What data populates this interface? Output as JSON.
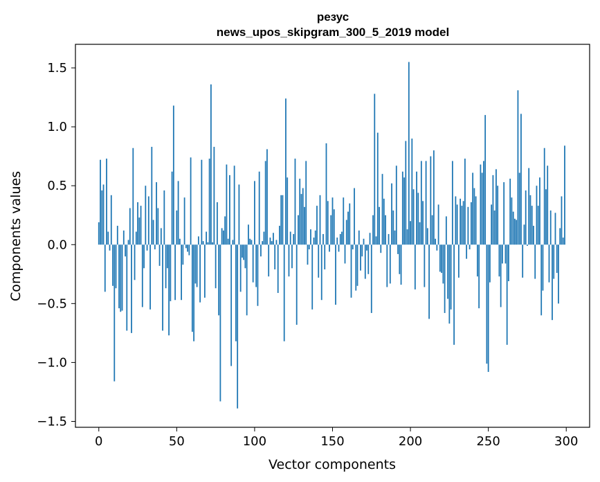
{
  "chart_data": {
    "type": "bar",
    "title": "резус",
    "subtitle": "news_upos_skipgram_300_5_2019 model",
    "xlabel": "Vector components",
    "ylabel": "Components values",
    "xlim": [
      -15,
      315
    ],
    "ylim": [
      -1.55,
      1.7
    ],
    "xticks": [
      0,
      50,
      100,
      150,
      200,
      250,
      300
    ],
    "xtick_labels": [
      "0",
      "50",
      "100",
      "150",
      "200",
      "250",
      "300"
    ],
    "yticks": [
      -1.5,
      -1.0,
      -0.5,
      0.0,
      0.5,
      1.0,
      1.5
    ],
    "ytick_labels": [
      "−1.5",
      "−1.0",
      "−0.5",
      "0.0",
      "0.5",
      "1.0",
      "1.5"
    ],
    "bar_color": "#1f77b4",
    "x": "0..299",
    "values": [
      0.19,
      0.72,
      0.46,
      0.51,
      -0.4,
      0.73,
      0.11,
      -0.05,
      0.42,
      -0.35,
      -1.16,
      -0.37,
      0.16,
      -0.54,
      -0.57,
      -0.56,
      0.12,
      -0.1,
      -0.73,
      0.04,
      0.31,
      -0.75,
      0.82,
      -0.3,
      0.11,
      0.36,
      0.23,
      0.33,
      -0.53,
      -0.2,
      0.5,
      -0.05,
      0.41,
      -0.55,
      0.83,
      0.21,
      -0.04,
      0.53,
      0.31,
      -0.18,
      0.14,
      -0.73,
      0.46,
      -0.37,
      -0.2,
      -0.77,
      -0.48,
      0.62,
      1.18,
      -0.47,
      0.29,
      0.54,
      0.05,
      -0.47,
      -0.17,
      0.4,
      -0.03,
      -0.06,
      -0.09,
      0.74,
      -0.74,
      -0.82,
      -0.33,
      -0.36,
      0.07,
      -0.49,
      0.72,
      0.03,
      -0.45,
      0.11,
      0.02,
      0.73,
      1.36,
      0.02,
      0.83,
      -0.37,
      0.36,
      -0.6,
      -1.33,
      0.14,
      0.12,
      0.24,
      0.68,
      0.05,
      0.59,
      -1.03,
      0.04,
      0.67,
      -0.82,
      -1.39,
      0.51,
      -0.4,
      -0.11,
      -0.13,
      -0.2,
      -0.6,
      0.17,
      0.05,
      0.04,
      -0.32,
      0.54,
      -0.36,
      -0.52,
      0.62,
      -0.1,
      0.03,
      0.11,
      0.71,
      0.81,
      -0.27,
      0.06,
      0.03,
      0.1,
      -0.21,
      0.04,
      -0.41,
      0.16,
      0.42,
      0.42,
      -0.82,
      1.24,
      0.57,
      -0.27,
      0.11,
      -0.2,
      0.09,
      0.73,
      -0.68,
      0.25,
      0.56,
      0.43,
      0.48,
      0.32,
      0.71,
      -0.17,
      -0.04,
      0.13,
      -0.55,
      0.06,
      0.12,
      0.33,
      -0.28,
      0.42,
      -0.47,
      0.09,
      -0.21,
      0.86,
      0.37,
      -0.06,
      0.25,
      0.4,
      0.3,
      -0.51,
      0.06,
      -0.06,
      0.09,
      0.11,
      0.4,
      -0.16,
      0.21,
      0.28,
      0.35,
      -0.45,
      -0.04,
      0.48,
      -0.39,
      -0.35,
      0.12,
      -0.22,
      -0.1,
      0.05,
      -0.29,
      -0.05,
      -0.25,
      0.1,
      -0.58,
      0.25,
      1.28,
      0.07,
      0.95,
      0.32,
      -0.07,
      0.6,
      0.39,
      0.25,
      -0.36,
      0.09,
      -0.33,
      0.52,
      0.29,
      0.12,
      0.67,
      -0.08,
      -0.25,
      -0.34,
      0.62,
      0.57,
      0.88,
      0.13,
      1.55,
      0.2,
      0.9,
      0.47,
      -0.38,
      0.62,
      0.44,
      0.19,
      0.71,
      0.37,
      -0.36,
      0.71,
      0.14,
      -0.63,
      0.75,
      0.25,
      0.8,
      0.05,
      -0.05,
      0.34,
      -0.23,
      -0.24,
      -0.33,
      -0.58,
      0.24,
      -0.46,
      -0.67,
      -0.55,
      0.71,
      -0.85,
      0.41,
      0.34,
      -0.28,
      0.39,
      0.33,
      0.37,
      0.73,
      -0.12,
      0.32,
      -0.04,
      0.36,
      0.61,
      0.48,
      0.41,
      -0.27,
      -0.54,
      0.68,
      0.61,
      0.71,
      1.1,
      -1.01,
      -1.08,
      -0.32,
      0.34,
      0.59,
      0.29,
      0.64,
      0.5,
      -0.27,
      -0.53,
      -0.16,
      0.53,
      -0.16,
      -0.85,
      -0.31,
      0.56,
      0.4,
      0.28,
      0.22,
      0.21,
      1.31,
      0.61,
      1.11,
      -0.28,
      0.17,
      0.46,
      -0.01,
      0.65,
      0.42,
      0.33,
      0.16,
      -0.29,
      0.5,
      0.33,
      0.57,
      -0.6,
      -0.39,
      0.82,
      0.47,
      0.67,
      -0.32,
      0.29,
      -0.64,
      -0.29,
      0.27,
      -0.24,
      -0.5,
      0.14,
      0.41,
      0.06,
      0.84
    ]
  }
}
